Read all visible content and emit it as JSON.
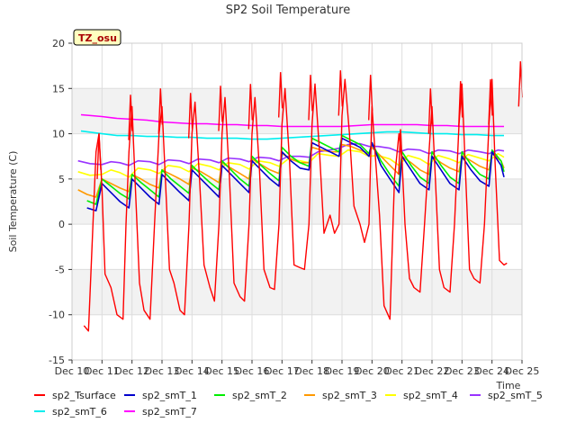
{
  "chart_data": {
    "type": "line",
    "title": "SP2 Soil Temperature",
    "xlabel": "Time",
    "ylabel": "Soil Temperature (C)",
    "ylim": [
      -15,
      20
    ],
    "xlim": [
      10,
      25
    ],
    "yticks": [
      -15,
      -10,
      -5,
      0,
      5,
      10,
      15,
      20
    ],
    "xticks": [
      10,
      11,
      12,
      13,
      14,
      15,
      16,
      17,
      18,
      19,
      20,
      21,
      22,
      23,
      24,
      25
    ],
    "xtick_labels": [
      "Dec 10",
      "Dec 11",
      "Dec 12",
      "Dec 13",
      "Dec 14",
      "Dec 15",
      "Dec 16",
      "Dec 17",
      "Dec 18",
      "Dec 19",
      "Dec 20",
      "Dec 21",
      "Dec 22",
      "Dec 23",
      "Dec 24",
      "Dec 25"
    ],
    "grid": true,
    "banded_background": true,
    "legend_position": "bottom",
    "site_badge": "TZ_osu",
    "colors": {
      "sp2_Tsurface": "#ff0000",
      "sp2_smT_1": "#0000cc",
      "sp2_smT_2": "#00ee00",
      "sp2_smT_3": "#ff9900",
      "sp2_smT_4": "#ffff00",
      "sp2_smT_5": "#9933ff",
      "sp2_smT_6": "#00eeee",
      "sp2_smT_7": "#ff00ff"
    },
    "series": [
      {
        "name": "sp2_Tsurface",
        "x": [
          10.4,
          10.55,
          10.7,
          10.8,
          10.9,
          11.0,
          11.1,
          11.3,
          11.5,
          11.7,
          11.8,
          11.9,
          12.0,
          12.1,
          12.25,
          12.4,
          12.6,
          12.75,
          12.9,
          13.0,
          13.1,
          13.25,
          13.4,
          13.6,
          13.75,
          13.9,
          14.0,
          14.1,
          14.25,
          14.4,
          14.6,
          14.75,
          14.9,
          15.0,
          15.1,
          15.25,
          15.4,
          15.6,
          15.75,
          15.9,
          16.0,
          16.1,
          16.25,
          16.4,
          16.6,
          16.75,
          16.9,
          17.0,
          17.1,
          17.25,
          17.4,
          17.6,
          17.75,
          17.9,
          18.0,
          18.1,
          18.25,
          18.4,
          18.6,
          18.75,
          18.9,
          19.0,
          19.1,
          19.25,
          19.4,
          19.6,
          19.75,
          19.9,
          20.0,
          20.1,
          20.25,
          20.4,
          20.6,
          20.75,
          20.9,
          21.0,
          21.1,
          21.25,
          21.4,
          21.6,
          21.75,
          21.9,
          22.0,
          22.1,
          22.25,
          22.4,
          22.6,
          22.75,
          22.9,
          23.0,
          23.1,
          23.25,
          23.4,
          23.6,
          23.75,
          23.9,
          24.0,
          24.1,
          24.25,
          24.4,
          24.5
        ],
        "values": [
          -11.2,
          -11.8,
          0,
          8,
          10,
          4,
          -5.5,
          -7,
          -10,
          -10.5,
          0,
          8,
          13,
          5,
          -6.5,
          -9.5,
          -10.5,
          0,
          10,
          13,
          6,
          -5,
          -6.5,
          -9.5,
          -10,
          0,
          10,
          13.5,
          5,
          -4.5,
          -7,
          -8.5,
          0,
          10,
          14,
          5,
          -6.5,
          -8,
          -8.5,
          0,
          10,
          14,
          6,
          -5,
          -7,
          -7.2,
          0,
          11,
          15,
          7,
          -4.5,
          -4.8,
          -5,
          0,
          11,
          15.5,
          8,
          -1,
          1,
          -1,
          0,
          12,
          16,
          10,
          2,
          0,
          -2,
          0,
          13,
          8,
          1,
          -9,
          -10.5,
          5,
          10,
          7,
          0,
          -6,
          -7,
          -7.5,
          0,
          8,
          13,
          6,
          -5,
          -7,
          -7.5,
          0,
          11,
          15.5,
          7,
          -5,
          -6,
          -6.5,
          0,
          11,
          16,
          7,
          -4,
          -4.5,
          -4.3
        ],
        "peak_values": [
          10,
          14.3,
          15,
          14.5,
          15.3,
          15.5,
          16.8,
          16.5,
          17,
          16.5,
          10.5,
          15,
          15.8,
          16,
          18
        ]
      },
      {
        "name": "sp2_smT_1",
        "x": [
          10.5,
          10.8,
          11.0,
          11.3,
          11.6,
          11.9,
          12.0,
          12.3,
          12.6,
          12.9,
          13.0,
          13.3,
          13.6,
          13.9,
          14.0,
          14.3,
          14.6,
          14.9,
          15.0,
          15.3,
          15.6,
          15.9,
          16.0,
          16.3,
          16.6,
          16.9,
          17.0,
          17.3,
          17.6,
          17.9,
          18.0,
          18.3,
          18.6,
          18.9,
          19.0,
          19.3,
          19.6,
          19.9,
          20.0,
          20.3,
          20.6,
          20.9,
          21.0,
          21.3,
          21.6,
          21.9,
          22.0,
          22.3,
          22.6,
          22.9,
          23.0,
          23.3,
          23.6,
          23.9,
          24.0,
          24.3,
          24.4
        ],
        "values": [
          1.8,
          1.5,
          4.5,
          3.5,
          2.5,
          1.8,
          5.0,
          4.0,
          3.0,
          2.2,
          5.5,
          4.5,
          3.5,
          2.6,
          6.0,
          5.0,
          4.0,
          3.0,
          6.5,
          5.5,
          4.5,
          3.5,
          7.0,
          6.0,
          5.0,
          4.2,
          8.0,
          7.0,
          6.2,
          6.0,
          9.0,
          8.5,
          8.0,
          7.5,
          9.5,
          9.0,
          8.5,
          7.5,
          9.0,
          6.5,
          5.0,
          3.5,
          7.5,
          6.0,
          4.5,
          3.8,
          7.5,
          6.0,
          4.5,
          3.8,
          7.5,
          6.0,
          4.8,
          4.2,
          8.0,
          6.5,
          5.2
        ]
      },
      {
        "name": "sp2_smT_2",
        "x": [
          10.5,
          10.8,
          11.0,
          11.3,
          11.6,
          11.9,
          12.0,
          12.3,
          12.6,
          12.9,
          13.0,
          13.3,
          13.6,
          13.9,
          14.0,
          14.3,
          14.6,
          14.9,
          15.0,
          15.3,
          15.6,
          15.9,
          16.0,
          16.3,
          16.6,
          16.9,
          17.0,
          17.3,
          17.6,
          17.9,
          18.0,
          18.3,
          18.6,
          18.9,
          19.0,
          19.3,
          19.6,
          19.9,
          20.0,
          20.3,
          20.6,
          20.9,
          21.0,
          21.3,
          21.6,
          21.9,
          22.0,
          22.3,
          22.6,
          22.9,
          23.0,
          23.3,
          23.6,
          23.9,
          24.0,
          24.3,
          24.4
        ],
        "values": [
          2.6,
          2.2,
          5.0,
          4.2,
          3.4,
          2.8,
          5.5,
          4.6,
          3.8,
          3.0,
          6.0,
          5.0,
          4.2,
          3.4,
          6.5,
          5.5,
          4.6,
          3.8,
          7.0,
          6.0,
          5.0,
          4.2,
          7.5,
          6.5,
          5.6,
          4.8,
          8.5,
          7.5,
          6.8,
          6.4,
          9.5,
          9.0,
          8.5,
          8.0,
          9.8,
          9.3,
          8.8,
          7.8,
          9.0,
          7.0,
          5.5,
          4.2,
          8.0,
          6.5,
          5.2,
          4.5,
          8.0,
          6.5,
          5.2,
          4.5,
          8.0,
          6.6,
          5.5,
          5.0,
          8.2,
          7.0,
          5.8
        ]
      },
      {
        "name": "sp2_smT_3",
        "x": [
          10.2,
          10.5,
          10.8,
          11.0,
          11.3,
          11.6,
          11.9,
          12.0,
          12.3,
          12.6,
          12.9,
          13.0,
          13.3,
          13.6,
          13.9,
          14.0,
          14.3,
          14.6,
          14.9,
          15.0,
          15.3,
          15.6,
          15.9,
          16.0,
          16.3,
          16.6,
          16.9,
          17.0,
          17.3,
          17.6,
          17.9,
          18.0,
          18.3,
          18.6,
          18.9,
          19.0,
          19.3,
          19.6,
          19.9,
          20.0,
          20.3,
          20.6,
          20.9,
          21.0,
          21.3,
          21.6,
          21.9,
          22.0,
          22.3,
          22.6,
          22.9,
          23.0,
          23.3,
          23.6,
          23.9,
          24.0,
          24.3,
          24.4
        ],
        "values": [
          3.8,
          3.3,
          3.0,
          5.0,
          4.5,
          4.0,
          3.6,
          5.5,
          5.0,
          4.4,
          4.0,
          6.0,
          5.5,
          5.0,
          4.4,
          6.2,
          5.8,
          5.2,
          4.6,
          6.8,
          6.2,
          5.6,
          5.0,
          7.2,
          6.6,
          6.0,
          5.6,
          7.8,
          7.2,
          6.8,
          6.8,
          8.5,
          8.2,
          8.0,
          8.0,
          8.8,
          8.6,
          8.2,
          7.8,
          8.5,
          7.5,
          6.5,
          5.5,
          7.5,
          6.8,
          6.0,
          5.5,
          7.5,
          6.8,
          6.2,
          5.8,
          7.6,
          7.0,
          6.4,
          6.0,
          7.8,
          7.0,
          6.2
        ]
      },
      {
        "name": "sp2_smT_4",
        "x": [
          10.2,
          10.6,
          11.0,
          11.3,
          11.6,
          11.9,
          12.2,
          12.6,
          12.9,
          13.2,
          13.6,
          13.9,
          14.2,
          14.6,
          14.9,
          15.2,
          15.6,
          15.9,
          16.2,
          16.6,
          16.9,
          17.2,
          17.6,
          17.9,
          18.2,
          18.6,
          18.9,
          19.2,
          19.6,
          19.9,
          20.2,
          20.6,
          20.9,
          21.2,
          21.6,
          21.9,
          22.2,
          22.6,
          22.9,
          23.2,
          23.6,
          23.9,
          24.2,
          24.4
        ],
        "values": [
          5.8,
          5.4,
          5.5,
          6.0,
          5.7,
          5.2,
          6.2,
          6.0,
          5.6,
          6.5,
          6.3,
          5.8,
          6.7,
          6.4,
          6.0,
          6.8,
          6.6,
          6.1,
          7.0,
          6.8,
          6.4,
          7.2,
          7.0,
          6.8,
          7.8,
          7.6,
          7.5,
          8.2,
          8.0,
          7.5,
          7.6,
          7.2,
          6.5,
          7.6,
          7.2,
          6.6,
          7.6,
          7.2,
          6.8,
          7.7,
          7.3,
          7.0,
          7.8,
          7.4
        ]
      },
      {
        "name": "sp2_smT_5",
        "x": [
          10.2,
          10.6,
          11.0,
          11.3,
          11.6,
          11.9,
          12.2,
          12.6,
          12.9,
          13.2,
          13.6,
          13.9,
          14.2,
          14.6,
          14.9,
          15.2,
          15.6,
          15.9,
          16.2,
          16.6,
          16.9,
          17.2,
          17.6,
          17.9,
          18.2,
          18.6,
          18.9,
          19.2,
          19.6,
          19.9,
          20.2,
          20.6,
          20.9,
          21.2,
          21.6,
          21.9,
          22.2,
          22.6,
          22.9,
          23.2,
          23.6,
          23.9,
          24.2,
          24.4
        ],
        "values": [
          7.0,
          6.7,
          6.6,
          6.9,
          6.8,
          6.5,
          7.0,
          6.9,
          6.6,
          7.1,
          7.0,
          6.7,
          7.2,
          7.1,
          6.8,
          7.3,
          7.2,
          6.9,
          7.4,
          7.3,
          7.0,
          7.5,
          7.5,
          7.4,
          8.0,
          8.2,
          8.4,
          8.8,
          8.9,
          8.6,
          8.6,
          8.4,
          8.0,
          8.3,
          8.2,
          7.8,
          8.2,
          8.1,
          7.8,
          8.2,
          8.0,
          7.8,
          8.2,
          8.1
        ]
      },
      {
        "name": "sp2_smT_6",
        "x": [
          10.3,
          11.0,
          11.5,
          12.0,
          12.5,
          13.0,
          13.5,
          14.0,
          14.5,
          15.0,
          15.5,
          16.0,
          16.5,
          17.0,
          17.5,
          18.0,
          18.5,
          19.0,
          19.5,
          20.0,
          20.5,
          21.0,
          21.5,
          22.0,
          22.5,
          23.0,
          23.5,
          24.0,
          24.4
        ],
        "values": [
          10.3,
          10.0,
          9.8,
          9.8,
          9.7,
          9.7,
          9.6,
          9.6,
          9.5,
          9.5,
          9.5,
          9.4,
          9.4,
          9.5,
          9.6,
          9.7,
          9.8,
          9.9,
          10.0,
          10.1,
          10.2,
          10.2,
          10.1,
          10.0,
          10.0,
          9.9,
          9.9,
          9.8,
          9.8
        ]
      },
      {
        "name": "sp2_smT_7",
        "x": [
          10.3,
          11.0,
          11.5,
          12.0,
          12.5,
          13.0,
          13.5,
          14.0,
          14.5,
          15.0,
          15.5,
          16.0,
          16.5,
          17.0,
          17.5,
          18.0,
          18.5,
          19.0,
          19.5,
          20.0,
          20.5,
          21.0,
          21.5,
          22.0,
          22.5,
          23.0,
          23.5,
          24.0,
          24.4
        ],
        "values": [
          12.1,
          11.9,
          11.7,
          11.6,
          11.5,
          11.3,
          11.2,
          11.1,
          11.1,
          11.0,
          11.0,
          10.9,
          10.9,
          10.8,
          10.8,
          10.8,
          10.8,
          10.8,
          10.9,
          11.0,
          11.0,
          11.0,
          11.0,
          10.9,
          10.9,
          10.8,
          10.8,
          10.8,
          10.8
        ]
      }
    ]
  }
}
